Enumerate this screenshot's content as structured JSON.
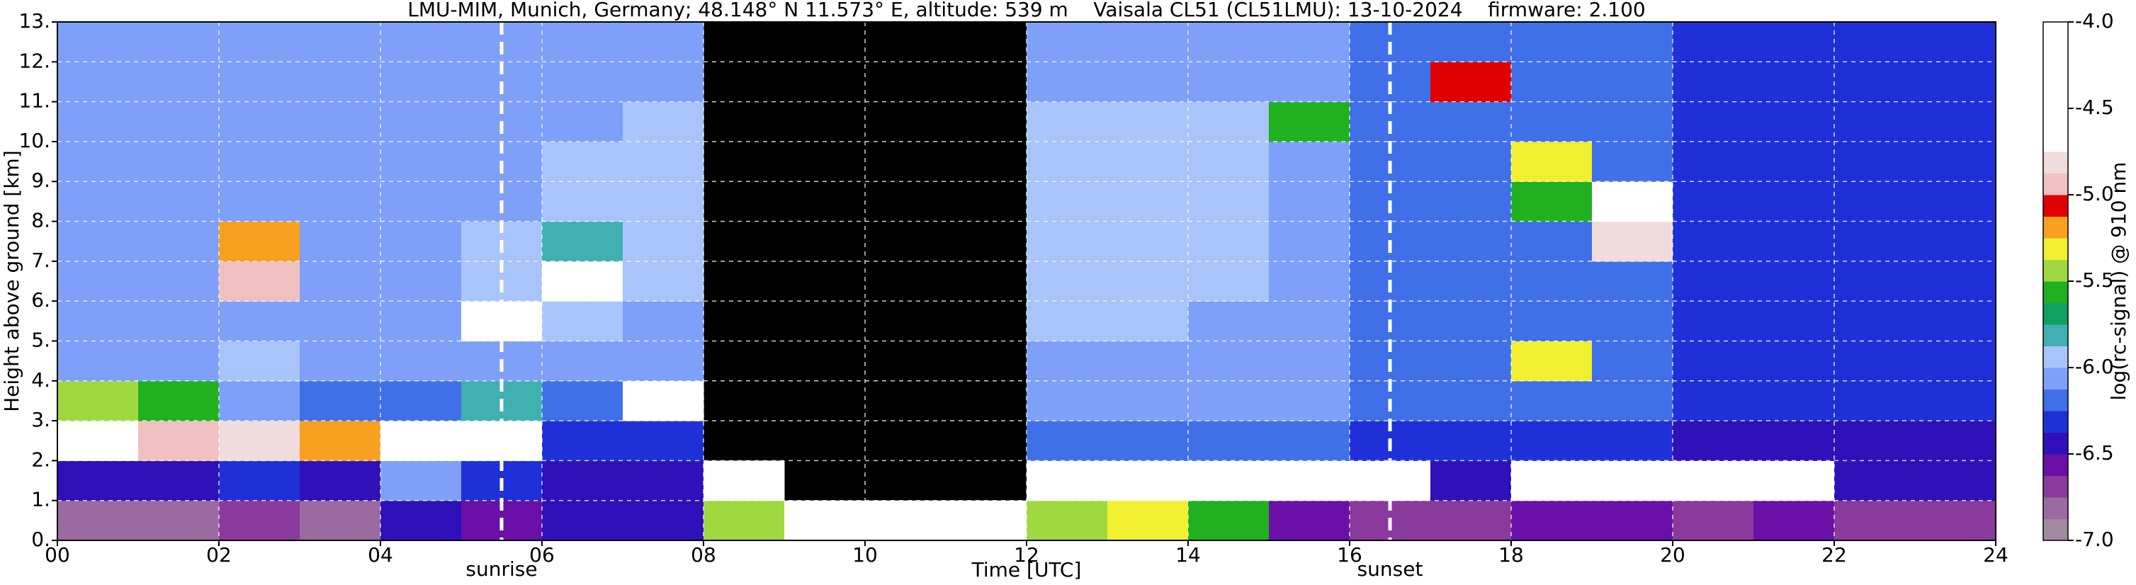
{
  "chart_data": {
    "type": "heatmap",
    "title": "LMU-MIM, Munich, Germany; 48.148° N 11.573° E, altitude: 539 m    Vaisala CL51 (CL51LMU): 13-10-2024    firmware: 2.100",
    "xlabel": "Time [UTC]",
    "ylabel": "Height above ground [km]",
    "colorbar_label": "log(rc-signal) @ 910 nm",
    "xlim": [
      0,
      24
    ],
    "ylim": [
      0,
      13
    ],
    "clim": [
      -7,
      -4
    ],
    "xticks": [
      {
        "value": 0,
        "label": "00"
      },
      {
        "value": 2,
        "label": "02"
      },
      {
        "value": 4,
        "label": "04"
      },
      {
        "value": 6,
        "label": "06"
      },
      {
        "value": 8,
        "label": "08"
      },
      {
        "value": 10,
        "label": "10"
      },
      {
        "value": 12,
        "label": "12"
      },
      {
        "value": 14,
        "label": "14"
      },
      {
        "value": 16,
        "label": "16"
      },
      {
        "value": 18,
        "label": "18"
      },
      {
        "value": 20,
        "label": "20"
      },
      {
        "value": 22,
        "label": "22"
      },
      {
        "value": 24,
        "label": "24"
      }
    ],
    "yticks": [
      {
        "value": 0,
        "label": "0."
      },
      {
        "value": 1,
        "label": "1."
      },
      {
        "value": 2,
        "label": "2."
      },
      {
        "value": 3,
        "label": "3."
      },
      {
        "value": 4,
        "label": "4."
      },
      {
        "value": 5,
        "label": "5."
      },
      {
        "value": 6,
        "label": "6."
      },
      {
        "value": 7,
        "label": "7."
      },
      {
        "value": 8,
        "label": "8."
      },
      {
        "value": 9,
        "label": "9."
      },
      {
        "value": 10,
        "label": "10."
      },
      {
        "value": 11,
        "label": "11."
      },
      {
        "value": 12,
        "label": "12."
      },
      {
        "value": 13,
        "label": "13."
      }
    ],
    "cticks": [
      {
        "value": -4,
        "label": "-4.0"
      },
      {
        "value": -4.5,
        "label": "-4.5"
      },
      {
        "value": -5,
        "label": "-5.0"
      },
      {
        "value": -5.5,
        "label": "-5.5"
      },
      {
        "value": -6,
        "label": "-6.0"
      },
      {
        "value": -6.5,
        "label": "-6.5"
      },
      {
        "value": -7,
        "label": "-7.0"
      }
    ],
    "grid": true,
    "colormap": [
      "#a08aa0",
      "#9a6aa0",
      "#8a3a9c",
      "#6a10a8",
      "#3010b8",
      "#2030d8",
      "#4070e8",
      "#7fa0f8",
      "#a8c4fa",
      "#40b0b0",
      "#10a060",
      "#20b020",
      "#a0d840",
      "#f0f030",
      "#f8a020",
      "#e00000",
      "#f0c0c0",
      "#f0dcdc",
      "#ffffff",
      "#ffffff",
      "#ffffff",
      "#ffffff",
      "#ffffff",
      "#ffffff"
    ],
    "annotations": [
      {
        "text": "sunrise",
        "x": 5.5
      },
      {
        "text": "sunset",
        "x": 16.5
      }
    ],
    "xbins": [
      0,
      1,
      2,
      3,
      4,
      5,
      6,
      7,
      8,
      9,
      10,
      11,
      12,
      13,
      14,
      15,
      16,
      17,
      18,
      19,
      20,
      21,
      22,
      23,
      24
    ],
    "ybins": [
      0,
      1,
      2,
      3,
      4,
      5,
      6,
      7,
      8,
      9,
      10,
      11,
      12,
      13
    ],
    "z": [
      [
        -6.8,
        -6.8,
        -6.7,
        -6.8,
        -6.5,
        -6.6,
        -6.5,
        -6.4,
        -5.5,
        -4.5,
        -4.4,
        -4.6,
        -5.4,
        -5.3,
        -5.6,
        -6.6,
        -6.7,
        -6.7,
        -6.6,
        -6.6,
        -6.7,
        -6.6,
        -6.7,
        -6.7
      ],
      [
        -6.5,
        -6.5,
        -6.3,
        -6.5,
        -6.1,
        -6.3,
        -6.5,
        -6.5,
        -4.6,
        null,
        null,
        null,
        -4.5,
        -4.6,
        -4.5,
        -4.6,
        -4.5,
        -6.4,
        -4.5,
        -4.5,
        -4.6,
        -4.7,
        -6.4,
        -6.5
      ],
      [
        -4.7,
        -5.0,
        -4.8,
        -5.2,
        -4.6,
        -4.5,
        -6.3,
        -6.3,
        null,
        null,
        null,
        null,
        -6.2,
        -6.2,
        -6.2,
        -6.2,
        -6.3,
        -6.3,
        -6.3,
        -6.3,
        -6.4,
        -6.4,
        -6.4,
        -6.4
      ],
      [
        -5.5,
        -5.6,
        -6.1,
        -6.2,
        -6.2,
        -5.8,
        -6.2,
        -4.6,
        null,
        null,
        null,
        null,
        -6.1,
        -6.1,
        -6.1,
        -6.1,
        -6.2,
        -6.2,
        -6.2,
        -6.2,
        -6.3,
        -6.3,
        -6.3,
        -6.3
      ],
      [
        -6.1,
        -6.1,
        -6.0,
        -6.1,
        -6.1,
        -6.1,
        -6.1,
        -6.1,
        null,
        null,
        null,
        null,
        -6.1,
        -6.1,
        -6.1,
        -6.1,
        -6.2,
        -6.2,
        -5.3,
        -6.2,
        -6.3,
        -6.3,
        -6.3,
        -6.3
      ],
      [
        -6.1,
        -6.1,
        -6.1,
        -6.1,
        -6.1,
        -4.7,
        -6.0,
        -6.1,
        null,
        null,
        null,
        null,
        -6.0,
        -6.0,
        -6.1,
        -6.1,
        -6.2,
        -6.2,
        -6.2,
        -6.2,
        -6.3,
        -6.3,
        -6.3,
        -6.3
      ],
      [
        -6.1,
        -6.1,
        -5.0,
        -6.1,
        -6.1,
        -6.0,
        -4.5,
        -6.0,
        null,
        null,
        null,
        null,
        -6.0,
        -6.0,
        -6.0,
        -6.1,
        -6.2,
        -6.2,
        -6.2,
        -6.2,
        -6.3,
        -6.3,
        -6.3,
        -6.3
      ],
      [
        -6.1,
        -6.1,
        -5.2,
        -6.1,
        -6.1,
        -6.0,
        -5.8,
        -6.0,
        null,
        null,
        null,
        null,
        -6.0,
        -6.0,
        -6.0,
        -6.1,
        -6.2,
        -6.2,
        -6.2,
        -4.8,
        -6.3,
        -6.3,
        -6.3,
        -6.3
      ],
      [
        -6.1,
        -6.1,
        -6.1,
        -6.1,
        -6.1,
        -6.1,
        -6.0,
        -6.0,
        null,
        null,
        null,
        null,
        -6.0,
        -6.0,
        -6.0,
        -6.1,
        -6.2,
        -6.2,
        -5.6,
        -4.6,
        -6.3,
        -6.3,
        -6.3,
        -6.3
      ],
      [
        -6.1,
        -6.1,
        -6.1,
        -6.1,
        -6.1,
        -6.1,
        -6.0,
        -6.0,
        null,
        null,
        null,
        null,
        -6.0,
        -6.0,
        -6.0,
        -6.1,
        -6.2,
        -6.2,
        -5.3,
        -6.2,
        -6.3,
        -6.3,
        -6.3,
        -6.3
      ],
      [
        -6.1,
        -6.1,
        -6.1,
        -6.1,
        -6.1,
        -6.1,
        -6.1,
        -6.0,
        null,
        null,
        null,
        null,
        -6.0,
        -6.0,
        -6.0,
        -5.6,
        -6.2,
        -6.2,
        -6.2,
        -6.2,
        -6.3,
        -6.3,
        -6.3,
        -6.3
      ],
      [
        -6.1,
        -6.1,
        -6.1,
        -6.1,
        -6.1,
        -6.1,
        -6.1,
        -6.1,
        null,
        null,
        null,
        null,
        -6.1,
        -6.1,
        -6.1,
        -6.1,
        -6.2,
        -5.1,
        -6.2,
        -6.2,
        -6.3,
        -6.3,
        -6.3,
        -6.3
      ],
      [
        -6.1,
        -6.1,
        -6.1,
        -6.1,
        -6.1,
        -6.1,
        -6.1,
        -6.1,
        null,
        null,
        null,
        null,
        -6.1,
        -6.1,
        -6.1,
        -6.1,
        -6.2,
        -6.2,
        -6.2,
        -6.2,
        -6.3,
        -6.3,
        -6.3,
        -6.3
      ]
    ]
  }
}
